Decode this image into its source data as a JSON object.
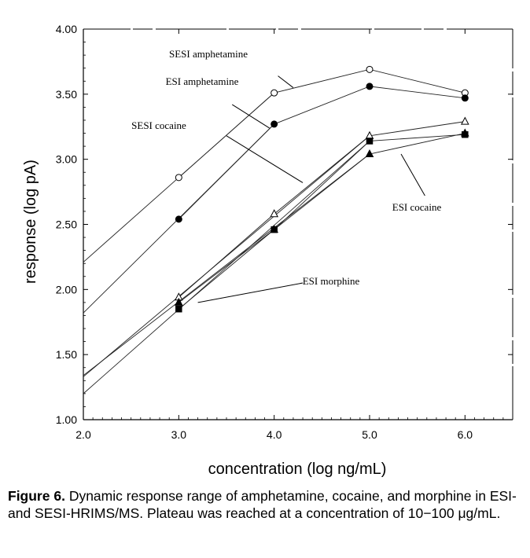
{
  "chart_data": {
    "type": "line",
    "xlabel": "concentration (log ng/mL)",
    "ylabel": "response (log pA)",
    "xlim": [
      2.0,
      6.5
    ],
    "ylim": [
      1.0,
      4.0
    ],
    "xticks": [
      "2.0",
      "3.0",
      "4.0",
      "5.0",
      "6.0"
    ],
    "yticks": [
      "1.00",
      "1.50",
      "2.00",
      "2.50",
      "3.00",
      "3.50",
      "4.00"
    ],
    "grid": false,
    "series": [
      {
        "name": "SESI amphetamine",
        "marker": "open-circle",
        "x": [
          3.0,
          4.0,
          5.0,
          6.0
        ],
        "y": [
          2.86,
          3.51,
          3.69,
          3.51
        ],
        "fit": [
          [
            2.0,
            2.21
          ],
          [
            4.0,
            3.51
          ]
        ]
      },
      {
        "name": "ESI amphetamine",
        "marker": "filled-circle",
        "x": [
          3.0,
          4.0,
          5.0,
          6.0
        ],
        "y": [
          2.54,
          3.27,
          3.56,
          3.47
        ],
        "fit": [
          [
            2.0,
            1.82
          ],
          [
            4.0,
            3.27
          ]
        ]
      },
      {
        "name": "SESI cocaine",
        "marker": "open-triangle",
        "x": [
          3.0,
          4.0,
          5.0,
          6.0
        ],
        "y": [
          1.94,
          2.58,
          3.18,
          3.29
        ],
        "fit": [
          [
            2.0,
            1.33
          ],
          [
            5.0,
            3.18
          ]
        ]
      },
      {
        "name": "ESI cocaine",
        "marker": "filled-triangle",
        "x": [
          3.0,
          4.0,
          5.0,
          6.0
        ],
        "y": [
          1.9,
          2.46,
          3.04,
          3.2
        ],
        "fit": [
          [
            2.0,
            1.34
          ],
          [
            5.0,
            3.04
          ]
        ]
      },
      {
        "name": "ESI morphine",
        "marker": "filled-square",
        "x": [
          3.0,
          4.0,
          5.0,
          6.0
        ],
        "y": [
          1.85,
          2.46,
          3.14,
          3.19
        ],
        "fit": [
          [
            2.0,
            1.2
          ],
          [
            5.0,
            3.14
          ]
        ]
      }
    ],
    "annotations": [
      {
        "text": "SESI amphetamine",
        "line": [
          [
            4.04,
            3.64
          ],
          [
            4.2,
            3.55
          ]
        ]
      },
      {
        "text": "ESI amphetamine",
        "line": [
          [
            3.56,
            3.42
          ],
          [
            3.95,
            3.24
          ]
        ]
      },
      {
        "text": "SESI cocaine",
        "line": [
          [
            3.5,
            3.18
          ],
          [
            4.3,
            2.82
          ]
        ]
      },
      {
        "text": "ESI cocaine",
        "line": [
          [
            5.33,
            3.04
          ],
          [
            5.58,
            2.72
          ]
        ]
      },
      {
        "text": "ESI morphine",
        "line": [
          [
            4.3,
            2.05
          ],
          [
            3.2,
            1.9
          ]
        ]
      }
    ]
  },
  "caption": {
    "label": "Figure 6.",
    "text": "Dynamic response range of amphetamine, cocaine, and morphine in ESI- and SESI-HRIMS/MS. Plateau was reached at a concentration of 10−100 μg/mL."
  }
}
